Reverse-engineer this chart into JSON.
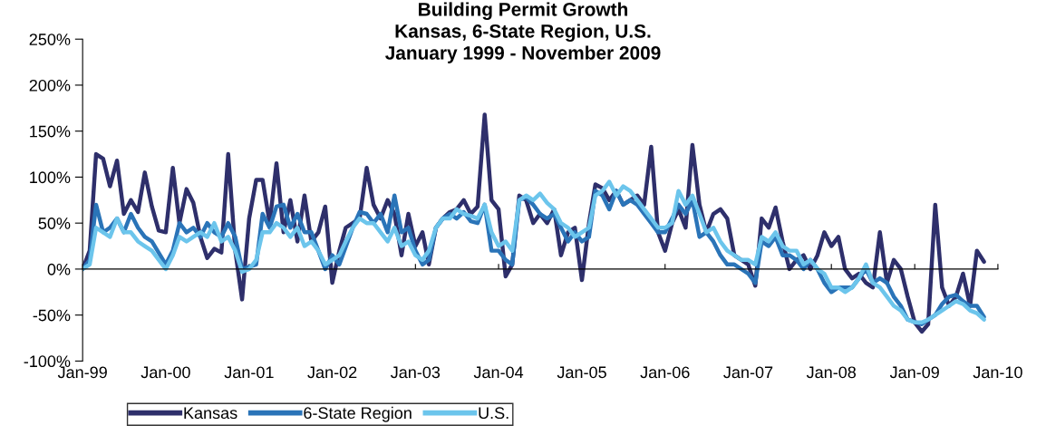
{
  "chart_data": {
    "type": "line",
    "title": "Building Permit Growth\nKansas, 6-State Region, U.S.\nJanuary 1999 - November 2009",
    "series": [
      {
        "name": "Kansas",
        "color": "#2e2f6b",
        "x": [
          "1999-01",
          "1999-02",
          "1999-03",
          "1999-04",
          "1999-05",
          "1999-06",
          "1999-07",
          "1999-08",
          "1999-09",
          "1999-10",
          "1999-11",
          "1999-12",
          "2000-01",
          "2000-02",
          "2000-03",
          "2000-04",
          "2000-05",
          "2000-06",
          "2000-07",
          "2000-08",
          "2000-09",
          "2000-10",
          "2000-11",
          "2000-12",
          "2001-01",
          "2001-02",
          "2001-03",
          "2001-04",
          "2001-05",
          "2001-06",
          "2001-07",
          "2001-08",
          "2001-09",
          "2001-10",
          "2001-11",
          "2001-12",
          "2002-01",
          "2002-02",
          "2002-03",
          "2002-04",
          "2002-05",
          "2002-06",
          "2002-07",
          "2002-08",
          "2002-09",
          "2002-10",
          "2002-11",
          "2002-12",
          "2003-01",
          "2003-02",
          "2003-03",
          "2003-04",
          "2003-05",
          "2003-06",
          "2003-07",
          "2003-08",
          "2003-09",
          "2003-10",
          "2003-11",
          "2003-12",
          "2004-01",
          "2004-02",
          "2004-03",
          "2004-04",
          "2004-05",
          "2004-06",
          "2004-07",
          "2004-08",
          "2004-09",
          "2004-10",
          "2004-11",
          "2004-12",
          "2005-01",
          "2005-02",
          "2005-03",
          "2005-04",
          "2005-05",
          "2005-06",
          "2005-07",
          "2005-08",
          "2005-09",
          "2005-10",
          "2005-11",
          "2005-12",
          "2006-01",
          "2006-02",
          "2006-03",
          "2006-04",
          "2006-05",
          "2006-06",
          "2006-07",
          "2006-08",
          "2006-09",
          "2006-10",
          "2006-11",
          "2006-12",
          "2007-01",
          "2007-02",
          "2007-03",
          "2007-04",
          "2007-05",
          "2007-06",
          "2007-07",
          "2007-08",
          "2007-09",
          "2007-10",
          "2007-11",
          "2007-12",
          "2008-01",
          "2008-02",
          "2008-03",
          "2008-04",
          "2008-05",
          "2008-06",
          "2008-07",
          "2008-08",
          "2008-09",
          "2008-10",
          "2008-11",
          "2008-12",
          "2009-01",
          "2009-02",
          "2009-03",
          "2009-04",
          "2009-05",
          "2009-06",
          "2009-07",
          "2009-08",
          "2009-09",
          "2009-10",
          "2009-11"
        ],
        "values": [
          0,
          20,
          125,
          120,
          90,
          118,
          60,
          75,
          62,
          105,
          68,
          42,
          40,
          110,
          50,
          87,
          72,
          35,
          12,
          22,
          18,
          125,
          20,
          -33,
          55,
          97,
          97,
          50,
          115,
          40,
          75,
          30,
          80,
          30,
          40,
          68,
          -15,
          20,
          45,
          50,
          55,
          110,
          70,
          55,
          75,
          60,
          15,
          60,
          25,
          40,
          5,
          45,
          55,
          62,
          65,
          75,
          60,
          68,
          168,
          75,
          65,
          -8,
          5,
          80,
          75,
          50,
          60,
          50,
          65,
          15,
          40,
          45,
          -12,
          50,
          92,
          88,
          75,
          85,
          70,
          75,
          80,
          70,
          133,
          40,
          20,
          50,
          65,
          45,
          135,
          70,
          40,
          60,
          65,
          55,
          15,
          10,
          5,
          -18,
          55,
          45,
          67,
          30,
          0,
          10,
          15,
          0,
          15,
          40,
          25,
          35,
          0,
          -10,
          -5,
          -15,
          -20,
          40,
          -15,
          10,
          0,
          -30,
          -58,
          -68,
          -60,
          70,
          -20,
          -40,
          -30,
          -5,
          -40,
          20,
          8
        ]
      },
      {
        "name": "6-State Region",
        "color": "#2a74b8",
        "x": [
          "1999-01",
          "1999-02",
          "1999-03",
          "1999-04",
          "1999-05",
          "1999-06",
          "1999-07",
          "1999-08",
          "1999-09",
          "1999-10",
          "1999-11",
          "2000-01",
          "2000-02",
          "2000-03",
          "2000-04",
          "2000-05",
          "2000-06",
          "2000-07",
          "2000-08",
          "2000-09",
          "2000-10",
          "2000-11",
          "2000-12",
          "2001-02",
          "2001-03",
          "2001-04",
          "2001-05",
          "2001-06",
          "2001-07",
          "2001-08",
          "2001-09",
          "2001-10",
          "2001-11",
          "2001-12",
          "2002-01",
          "2002-02",
          "2002-04",
          "2002-05",
          "2002-06",
          "2002-07",
          "2002-08",
          "2002-09",
          "2002-10",
          "2002-11",
          "2002-12",
          "2003-01",
          "2003-02",
          "2003-03",
          "2003-04",
          "2003-05",
          "2003-06",
          "2003-07",
          "2003-08",
          "2003-09",
          "2003-10",
          "2003-11",
          "2003-12",
          "2004-01",
          "2004-02",
          "2004-03",
          "2004-04",
          "2004-05",
          "2004-06",
          "2004-07",
          "2004-08",
          "2004-09",
          "2004-10",
          "2004-11",
          "2004-12",
          "2005-01",
          "2005-02",
          "2005-03",
          "2005-04",
          "2005-05",
          "2005-06",
          "2005-07",
          "2005-08",
          "2005-09",
          "2005-10",
          "2005-11",
          "2005-12",
          "2006-01",
          "2006-02",
          "2006-03",
          "2006-04",
          "2006-05",
          "2006-06",
          "2006-07",
          "2006-08",
          "2006-09",
          "2006-10",
          "2006-11",
          "2007-01",
          "2007-02",
          "2007-03",
          "2007-04",
          "2007-05",
          "2007-06",
          "2007-07",
          "2007-08",
          "2007-09",
          "2007-10",
          "2007-11",
          "2007-12",
          "2008-01",
          "2008-02",
          "2008-04",
          "2008-05",
          "2008-06",
          "2008-07",
          "2008-08",
          "2008-09",
          "2008-10",
          "2008-11",
          "2008-12",
          "2009-02",
          "2009-03",
          "2009-04",
          "2009-05",
          "2009-06",
          "2009-07",
          "2009-08",
          "2009-09",
          "2009-10",
          "2009-11"
        ],
        "values": [
          0,
          10,
          70,
          40,
          45,
          55,
          40,
          60,
          45,
          35,
          30,
          5,
          20,
          50,
          40,
          45,
          35,
          50,
          40,
          35,
          50,
          35,
          0,
          5,
          60,
          45,
          68,
          70,
          45,
          60,
          40,
          40,
          20,
          0,
          15,
          5,
          45,
          62,
          60,
          50,
          60,
          40,
          80,
          40,
          45,
          20,
          5,
          10,
          45,
          55,
          60,
          55,
          62,
          52,
          50,
          70,
          20,
          20,
          10,
          5,
          75,
          78,
          70,
          60,
          55,
          60,
          45,
          30,
          40,
          30,
          35,
          85,
          80,
          65,
          85,
          70,
          75,
          70,
          60,
          50,
          40,
          40,
          55,
          70,
          60,
          75,
          35,
          40,
          30,
          15,
          5,
          5,
          -5,
          -15,
          30,
          25,
          35,
          15,
          15,
          10,
          0,
          10,
          0,
          -15,
          -25,
          -20,
          -20,
          -10,
          0,
          -15,
          -10,
          -15,
          -30,
          -40,
          -55,
          -60,
          -55,
          -50,
          -38,
          -30,
          -28,
          -35,
          -40,
          -40,
          -52
        ]
      },
      {
        "name": "U.S.",
        "color": "#6cc5ec",
        "x": [
          "1999-01",
          "1999-02",
          "1999-03",
          "1999-04",
          "1999-05",
          "1999-06",
          "1999-07",
          "1999-08",
          "1999-09",
          "1999-10",
          "1999-11",
          "1999-12",
          "2000-01",
          "2000-02",
          "2000-03",
          "2000-04",
          "2000-05",
          "2000-06",
          "2000-07",
          "2000-08",
          "2000-09",
          "2000-10",
          "2000-11",
          "2000-12",
          "2001-01",
          "2001-02",
          "2001-03",
          "2001-04",
          "2001-05",
          "2001-06",
          "2001-07",
          "2001-08",
          "2001-09",
          "2001-10",
          "2001-11",
          "2001-12",
          "2002-01",
          "2002-02",
          "2002-03",
          "2002-04",
          "2002-05",
          "2002-06",
          "2002-07",
          "2002-08",
          "2002-09",
          "2002-10",
          "2002-11",
          "2002-12",
          "2003-01",
          "2003-02",
          "2003-03",
          "2003-04",
          "2003-05",
          "2003-06",
          "2003-07",
          "2003-08",
          "2003-09",
          "2003-10",
          "2003-11",
          "2003-12",
          "2004-01",
          "2004-02",
          "2004-03",
          "2004-04",
          "2004-05",
          "2004-06",
          "2004-07",
          "2004-08",
          "2004-09",
          "2004-10",
          "2004-11",
          "2004-12",
          "2005-01",
          "2005-02",
          "2005-03",
          "2005-04",
          "2005-05",
          "2005-06",
          "2005-07",
          "2005-08",
          "2005-09",
          "2005-10",
          "2005-11",
          "2005-12",
          "2006-01",
          "2006-02",
          "2006-03",
          "2006-04",
          "2006-05",
          "2006-06",
          "2006-07",
          "2006-08",
          "2006-09",
          "2006-10",
          "2006-11",
          "2006-12",
          "2007-01",
          "2007-02",
          "2007-03",
          "2007-04",
          "2007-05",
          "2007-06",
          "2007-07",
          "2007-08",
          "2007-09",
          "2007-10",
          "2007-11",
          "2007-12",
          "2008-01",
          "2008-02",
          "2008-03",
          "2008-04",
          "2008-05",
          "2008-06",
          "2008-07",
          "2008-08",
          "2008-09",
          "2008-10",
          "2008-11",
          "2008-12",
          "2009-01",
          "2009-02",
          "2009-03",
          "2009-04",
          "2009-05",
          "2009-06",
          "2009-07",
          "2009-08",
          "2009-09",
          "2009-10",
          "2009-11"
        ],
        "values": [
          0,
          5,
          45,
          40,
          35,
          55,
          40,
          40,
          30,
          25,
          20,
          10,
          0,
          15,
          35,
          30,
          35,
          40,
          35,
          50,
          30,
          35,
          20,
          -3,
          0,
          10,
          40,
          40,
          50,
          45,
          35,
          45,
          25,
          30,
          20,
          5,
          10,
          15,
          30,
          45,
          55,
          50,
          50,
          40,
          30,
          45,
          25,
          30,
          15,
          10,
          20,
          45,
          55,
          55,
          65,
          60,
          58,
          55,
          70,
          40,
          25,
          30,
          20,
          75,
          80,
          75,
          82,
          72,
          65,
          50,
          45,
          35,
          40,
          45,
          80,
          85,
          95,
          80,
          90,
          85,
          75,
          65,
          55,
          45,
          45,
          50,
          85,
          70,
          80,
          60,
          40,
          45,
          30,
          20,
          15,
          10,
          10,
          5,
          35,
          30,
          40,
          25,
          20,
          20,
          5,
          10,
          0,
          -5,
          -20,
          -20,
          -25,
          -20,
          -10,
          5,
          -15,
          -20,
          -30,
          -40,
          -45,
          -55,
          -58,
          -58,
          -55,
          -50,
          -45,
          -40,
          -35,
          -38,
          -45,
          -48,
          -55
        ]
      }
    ],
    "xlim": [
      "1999-01",
      "2010-01"
    ],
    "xticks": [
      {
        "value": "1999-01",
        "label": "Jan-99"
      },
      {
        "value": "2000-01",
        "label": "Jan-00"
      },
      {
        "value": "2001-01",
        "label": "Jan-01"
      },
      {
        "value": "2002-01",
        "label": "Jan-02"
      },
      {
        "value": "2003-01",
        "label": "Jan-03"
      },
      {
        "value": "2004-01",
        "label": "Jan-04"
      },
      {
        "value": "2005-01",
        "label": "Jan-05"
      },
      {
        "value": "2006-01",
        "label": "Jan-06"
      },
      {
        "value": "2007-01",
        "label": "Jan-07"
      },
      {
        "value": "2008-01",
        "label": "Jan-08"
      },
      {
        "value": "2009-01",
        "label": "Jan-09"
      },
      {
        "value": "2010-01",
        "label": "Jan-10"
      }
    ],
    "ylim": [
      -100,
      250
    ],
    "yticks": [
      {
        "value": -100,
        "label": "-100%"
      },
      {
        "value": -50,
        "label": "-50%"
      },
      {
        "value": 0,
        "label": "0%"
      },
      {
        "value": 50,
        "label": "50%"
      },
      {
        "value": 100,
        "label": "100%"
      },
      {
        "value": 150,
        "label": "150%"
      },
      {
        "value": 200,
        "label": "200%"
      },
      {
        "value": 250,
        "label": "250%"
      }
    ],
    "legend": "bottom left",
    "line_style": "solid",
    "marker": "none"
  }
}
